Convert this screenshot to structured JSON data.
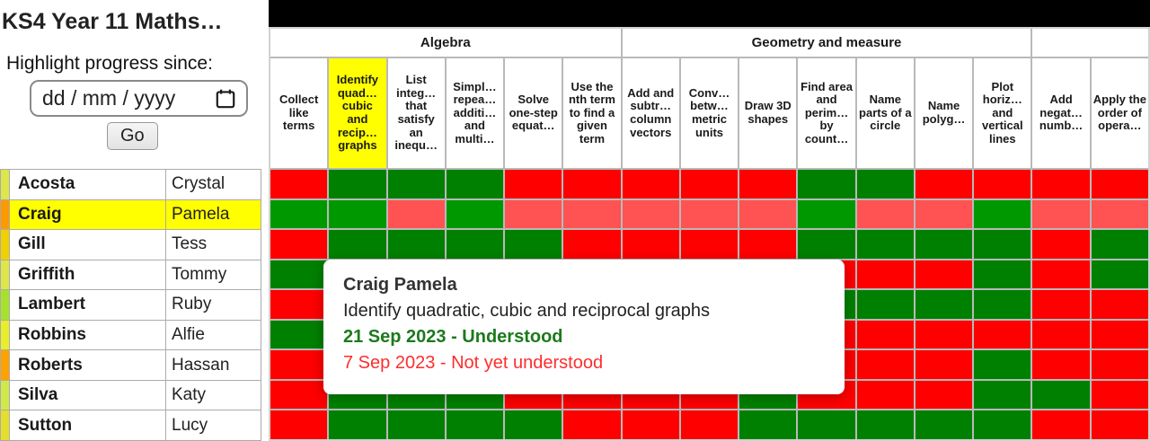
{
  "title": "KS4 Year 11 Maths…",
  "controls": {
    "highlight_label": "Highlight progress since:",
    "date_placeholder": "dd / mm / yyyy",
    "go_label": "Go"
  },
  "header_groups": [
    {
      "label": "Algebra",
      "span": 6
    },
    {
      "label": "Geometry and measure",
      "span": 7
    },
    {
      "label": "",
      "span": 2
    }
  ],
  "topics": [
    {
      "label": "Collect like terms",
      "selected": false
    },
    {
      "label": "Identify quad… cubic and recip… graphs",
      "selected": true
    },
    {
      "label": "List integ… that satisfy an inequ…",
      "selected": false
    },
    {
      "label": "Simpl… repea… additi… and multi…",
      "selected": false
    },
    {
      "label": "Solve one-step equat…",
      "selected": false
    },
    {
      "label": "Use the nth term to find a given term",
      "selected": false
    },
    {
      "label": "Add and subtr… column vectors",
      "selected": false
    },
    {
      "label": "Conv… betw… metric units",
      "selected": false
    },
    {
      "label": "Draw 3D shapes",
      "selected": false
    },
    {
      "label": "Find area and perim… by count…",
      "selected": false
    },
    {
      "label": "Name parts of a circle",
      "selected": false
    },
    {
      "label": "Name polyg…",
      "selected": false
    },
    {
      "label": "Plot horiz… and vertical lines",
      "selected": false
    },
    {
      "label": "Add negat… numb…",
      "selected": false
    },
    {
      "label": "Apply the order of opera…",
      "selected": false
    }
  ],
  "students": [
    {
      "surname": "Acosta",
      "firstname": "Crystal",
      "strip": "#dde64a",
      "selected": false
    },
    {
      "surname": "Craig",
      "firstname": "Pamela",
      "strip": "#ff9900",
      "selected": true
    },
    {
      "surname": "Gill",
      "firstname": "Tess",
      "strip": "#f0d100",
      "selected": false
    },
    {
      "surname": "Griffith",
      "firstname": "Tommy",
      "strip": "#dde64a",
      "selected": false
    },
    {
      "surname": "Lambert",
      "firstname": "Ruby",
      "strip": "#a6e22d",
      "selected": false
    },
    {
      "surname": "Robbins",
      "firstname": "Alfie",
      "strip": "#e9ee2b",
      "selected": false
    },
    {
      "surname": "Roberts",
      "firstname": "Hassan",
      "strip": "#ffa200",
      "selected": false
    },
    {
      "surname": "Silva",
      "firstname": "Katy",
      "strip": "#cfe94b",
      "selected": false
    },
    {
      "surname": "Sutton",
      "firstname": "Lucy",
      "strip": "#e6de2c",
      "selected": false
    }
  ],
  "cell_colors": {
    "R": "#fe0000",
    "G": "#008000",
    "r": "#ff5252",
    "g": "#009800"
  },
  "grid_rows": [
    "RGGGRRRRRGGRRRR",
    "ggrgrrrrrgrrgrr",
    "RGGGGRRRRGGGGRG",
    "GRRRRRRRRRRRGRG",
    "RRRRRRRRRGGGGRR",
    "GRRRRRRRRRRRRRR",
    "RRRRRRRRRRRRGRR",
    "RGGGRRRRGRRRGGR",
    "RGGGGRRRGGGGGRR"
  ],
  "tooltip": {
    "title": "Craig Pamela",
    "topic": "Identify quadratic, cubic and reciprocal graphs",
    "understood_line": "21 Sep 2023 - Understood",
    "not_understood_line": "7 Sep 2023 - Not yet understood",
    "understood_color": "#1c7a1c",
    "not_understood_color": "#fd2e2e"
  }
}
